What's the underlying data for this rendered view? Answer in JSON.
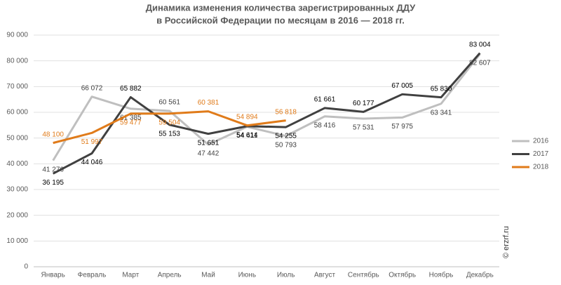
{
  "chart_data": {
    "type": "line",
    "title": [
      "Динамика изменения количества зарегистрированных ДДУ",
      "в Российской Федерации по месяцам в 2016 — 2018 гг."
    ],
    "watermark": "© erzrf.ru",
    "categories": [
      "Январь",
      "Февраль",
      "Март",
      "Апрель",
      "Май",
      "Июнь",
      "Июль",
      "Август",
      "Сентябрь",
      "Октябрь",
      "Ноябрь",
      "Декабрь"
    ],
    "series": [
      {
        "name": "2016",
        "color": "#bfbfbf",
        "label_color": "#404040",
        "values": [
          41276,
          66072,
          61385,
          60561,
          47442,
          54411,
          50793,
          58416,
          57531,
          57975,
          63341,
          82607
        ],
        "value_labels": [
          "41 276",
          "66 072",
          "61 385",
          "60 561",
          "47 442",
          "54 411",
          "50 793",
          "58 416",
          "57 531",
          "57 975",
          "63 341",
          "82 607"
        ]
      },
      {
        "name": "2017",
        "color": "#404040",
        "label_color": "#000000",
        "values": [
          36195,
          44046,
          65882,
          55153,
          51651,
          54614,
          54255,
          61661,
          60177,
          67005,
          65830,
          83004
        ],
        "value_labels": [
          "36 195",
          "44 046",
          "65 882",
          "55 153",
          "51 651",
          "54 614",
          "54 255",
          "61 661",
          "60 177",
          "67 005",
          "65 830",
          "83 004"
        ]
      },
      {
        "name": "2018",
        "color": "#e07b1a",
        "label_color": "#e07b1a",
        "values": [
          48100,
          51997,
          59477,
          59504,
          60381,
          54894,
          56818,
          null,
          null,
          null,
          null,
          null
        ],
        "value_labels": [
          "48 100",
          "51 997",
          "59 477",
          "59 504",
          "60 381",
          "54 894",
          "56 818",
          null,
          null,
          null,
          null,
          null
        ]
      }
    ],
    "ylim": [
      0,
      90000
    ],
    "yticks": [
      0,
      {
        "value": 10000,
        "label": "10 000"
      },
      {
        "value": 20000,
        "label": "20 000"
      },
      {
        "value": 30000,
        "label": "30 000"
      },
      {
        "value": 40000,
        "label": "40 000"
      },
      {
        "value": 50000,
        "label": "50 000"
      },
      {
        "value": 60000,
        "label": "60 000"
      },
      {
        "value": 70000,
        "label": "70 000"
      },
      {
        "value": 80000,
        "label": "80 000"
      },
      {
        "value": 90000,
        "label": "90 000"
      }
    ],
    "grid": true,
    "legend": "right"
  }
}
